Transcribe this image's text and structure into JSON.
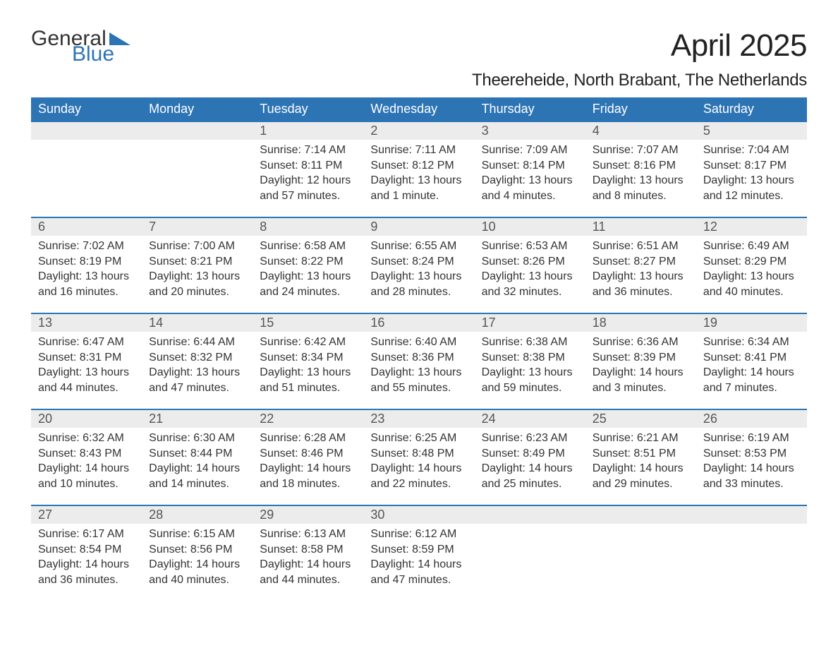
{
  "logo": {
    "word1": "General",
    "word2": "Blue",
    "word1_color": "#333333",
    "word2_color": "#2d74b5",
    "triangle_color": "#2d74b5",
    "fontsize": 30
  },
  "title": {
    "month": "April 2025",
    "month_fontsize": 44,
    "location": "Theereheide, North Brabant, The Netherlands",
    "location_fontsize": 24,
    "text_color": "#222222"
  },
  "calendar": {
    "header_bg": "#2d74b5",
    "header_fg": "#ffffff",
    "header_fontsize": 18,
    "daynum_bg": "#ececec",
    "daynum_fg": "#555555",
    "daynum_fontsize": 18,
    "body_fontsize": 16,
    "body_fg": "#333333",
    "row_border_color": "#2d74b5",
    "background": "#ffffff",
    "days_of_week": [
      "Sunday",
      "Monday",
      "Tuesday",
      "Wednesday",
      "Thursday",
      "Friday",
      "Saturday"
    ],
    "weeks": [
      [
        null,
        null,
        {
          "n": "1",
          "sunrise": "Sunrise: 7:14 AM",
          "sunset": "Sunset: 8:11 PM",
          "day1": "Daylight: 12 hours",
          "day2": "and 57 minutes."
        },
        {
          "n": "2",
          "sunrise": "Sunrise: 7:11 AM",
          "sunset": "Sunset: 8:12 PM",
          "day1": "Daylight: 13 hours",
          "day2": "and 1 minute."
        },
        {
          "n": "3",
          "sunrise": "Sunrise: 7:09 AM",
          "sunset": "Sunset: 8:14 PM",
          "day1": "Daylight: 13 hours",
          "day2": "and 4 minutes."
        },
        {
          "n": "4",
          "sunrise": "Sunrise: 7:07 AM",
          "sunset": "Sunset: 8:16 PM",
          "day1": "Daylight: 13 hours",
          "day2": "and 8 minutes."
        },
        {
          "n": "5",
          "sunrise": "Sunrise: 7:04 AM",
          "sunset": "Sunset: 8:17 PM",
          "day1": "Daylight: 13 hours",
          "day2": "and 12 minutes."
        }
      ],
      [
        {
          "n": "6",
          "sunrise": "Sunrise: 7:02 AM",
          "sunset": "Sunset: 8:19 PM",
          "day1": "Daylight: 13 hours",
          "day2": "and 16 minutes."
        },
        {
          "n": "7",
          "sunrise": "Sunrise: 7:00 AM",
          "sunset": "Sunset: 8:21 PM",
          "day1": "Daylight: 13 hours",
          "day2": "and 20 minutes."
        },
        {
          "n": "8",
          "sunrise": "Sunrise: 6:58 AM",
          "sunset": "Sunset: 8:22 PM",
          "day1": "Daylight: 13 hours",
          "day2": "and 24 minutes."
        },
        {
          "n": "9",
          "sunrise": "Sunrise: 6:55 AM",
          "sunset": "Sunset: 8:24 PM",
          "day1": "Daylight: 13 hours",
          "day2": "and 28 minutes."
        },
        {
          "n": "10",
          "sunrise": "Sunrise: 6:53 AM",
          "sunset": "Sunset: 8:26 PM",
          "day1": "Daylight: 13 hours",
          "day2": "and 32 minutes."
        },
        {
          "n": "11",
          "sunrise": "Sunrise: 6:51 AM",
          "sunset": "Sunset: 8:27 PM",
          "day1": "Daylight: 13 hours",
          "day2": "and 36 minutes."
        },
        {
          "n": "12",
          "sunrise": "Sunrise: 6:49 AM",
          "sunset": "Sunset: 8:29 PM",
          "day1": "Daylight: 13 hours",
          "day2": "and 40 minutes."
        }
      ],
      [
        {
          "n": "13",
          "sunrise": "Sunrise: 6:47 AM",
          "sunset": "Sunset: 8:31 PM",
          "day1": "Daylight: 13 hours",
          "day2": "and 44 minutes."
        },
        {
          "n": "14",
          "sunrise": "Sunrise: 6:44 AM",
          "sunset": "Sunset: 8:32 PM",
          "day1": "Daylight: 13 hours",
          "day2": "and 47 minutes."
        },
        {
          "n": "15",
          "sunrise": "Sunrise: 6:42 AM",
          "sunset": "Sunset: 8:34 PM",
          "day1": "Daylight: 13 hours",
          "day2": "and 51 minutes."
        },
        {
          "n": "16",
          "sunrise": "Sunrise: 6:40 AM",
          "sunset": "Sunset: 8:36 PM",
          "day1": "Daylight: 13 hours",
          "day2": "and 55 minutes."
        },
        {
          "n": "17",
          "sunrise": "Sunrise: 6:38 AM",
          "sunset": "Sunset: 8:38 PM",
          "day1": "Daylight: 13 hours",
          "day2": "and 59 minutes."
        },
        {
          "n": "18",
          "sunrise": "Sunrise: 6:36 AM",
          "sunset": "Sunset: 8:39 PM",
          "day1": "Daylight: 14 hours",
          "day2": "and 3 minutes."
        },
        {
          "n": "19",
          "sunrise": "Sunrise: 6:34 AM",
          "sunset": "Sunset: 8:41 PM",
          "day1": "Daylight: 14 hours",
          "day2": "and 7 minutes."
        }
      ],
      [
        {
          "n": "20",
          "sunrise": "Sunrise: 6:32 AM",
          "sunset": "Sunset: 8:43 PM",
          "day1": "Daylight: 14 hours",
          "day2": "and 10 minutes."
        },
        {
          "n": "21",
          "sunrise": "Sunrise: 6:30 AM",
          "sunset": "Sunset: 8:44 PM",
          "day1": "Daylight: 14 hours",
          "day2": "and 14 minutes."
        },
        {
          "n": "22",
          "sunrise": "Sunrise: 6:28 AM",
          "sunset": "Sunset: 8:46 PM",
          "day1": "Daylight: 14 hours",
          "day2": "and 18 minutes."
        },
        {
          "n": "23",
          "sunrise": "Sunrise: 6:25 AM",
          "sunset": "Sunset: 8:48 PM",
          "day1": "Daylight: 14 hours",
          "day2": "and 22 minutes."
        },
        {
          "n": "24",
          "sunrise": "Sunrise: 6:23 AM",
          "sunset": "Sunset: 8:49 PM",
          "day1": "Daylight: 14 hours",
          "day2": "and 25 minutes."
        },
        {
          "n": "25",
          "sunrise": "Sunrise: 6:21 AM",
          "sunset": "Sunset: 8:51 PM",
          "day1": "Daylight: 14 hours",
          "day2": "and 29 minutes."
        },
        {
          "n": "26",
          "sunrise": "Sunrise: 6:19 AM",
          "sunset": "Sunset: 8:53 PM",
          "day1": "Daylight: 14 hours",
          "day2": "and 33 minutes."
        }
      ],
      [
        {
          "n": "27",
          "sunrise": "Sunrise: 6:17 AM",
          "sunset": "Sunset: 8:54 PM",
          "day1": "Daylight: 14 hours",
          "day2": "and 36 minutes."
        },
        {
          "n": "28",
          "sunrise": "Sunrise: 6:15 AM",
          "sunset": "Sunset: 8:56 PM",
          "day1": "Daylight: 14 hours",
          "day2": "and 40 minutes."
        },
        {
          "n": "29",
          "sunrise": "Sunrise: 6:13 AM",
          "sunset": "Sunset: 8:58 PM",
          "day1": "Daylight: 14 hours",
          "day2": "and 44 minutes."
        },
        {
          "n": "30",
          "sunrise": "Sunrise: 6:12 AM",
          "sunset": "Sunset: 8:59 PM",
          "day1": "Daylight: 14 hours",
          "day2": "and 47 minutes."
        },
        null,
        null,
        null
      ]
    ]
  }
}
